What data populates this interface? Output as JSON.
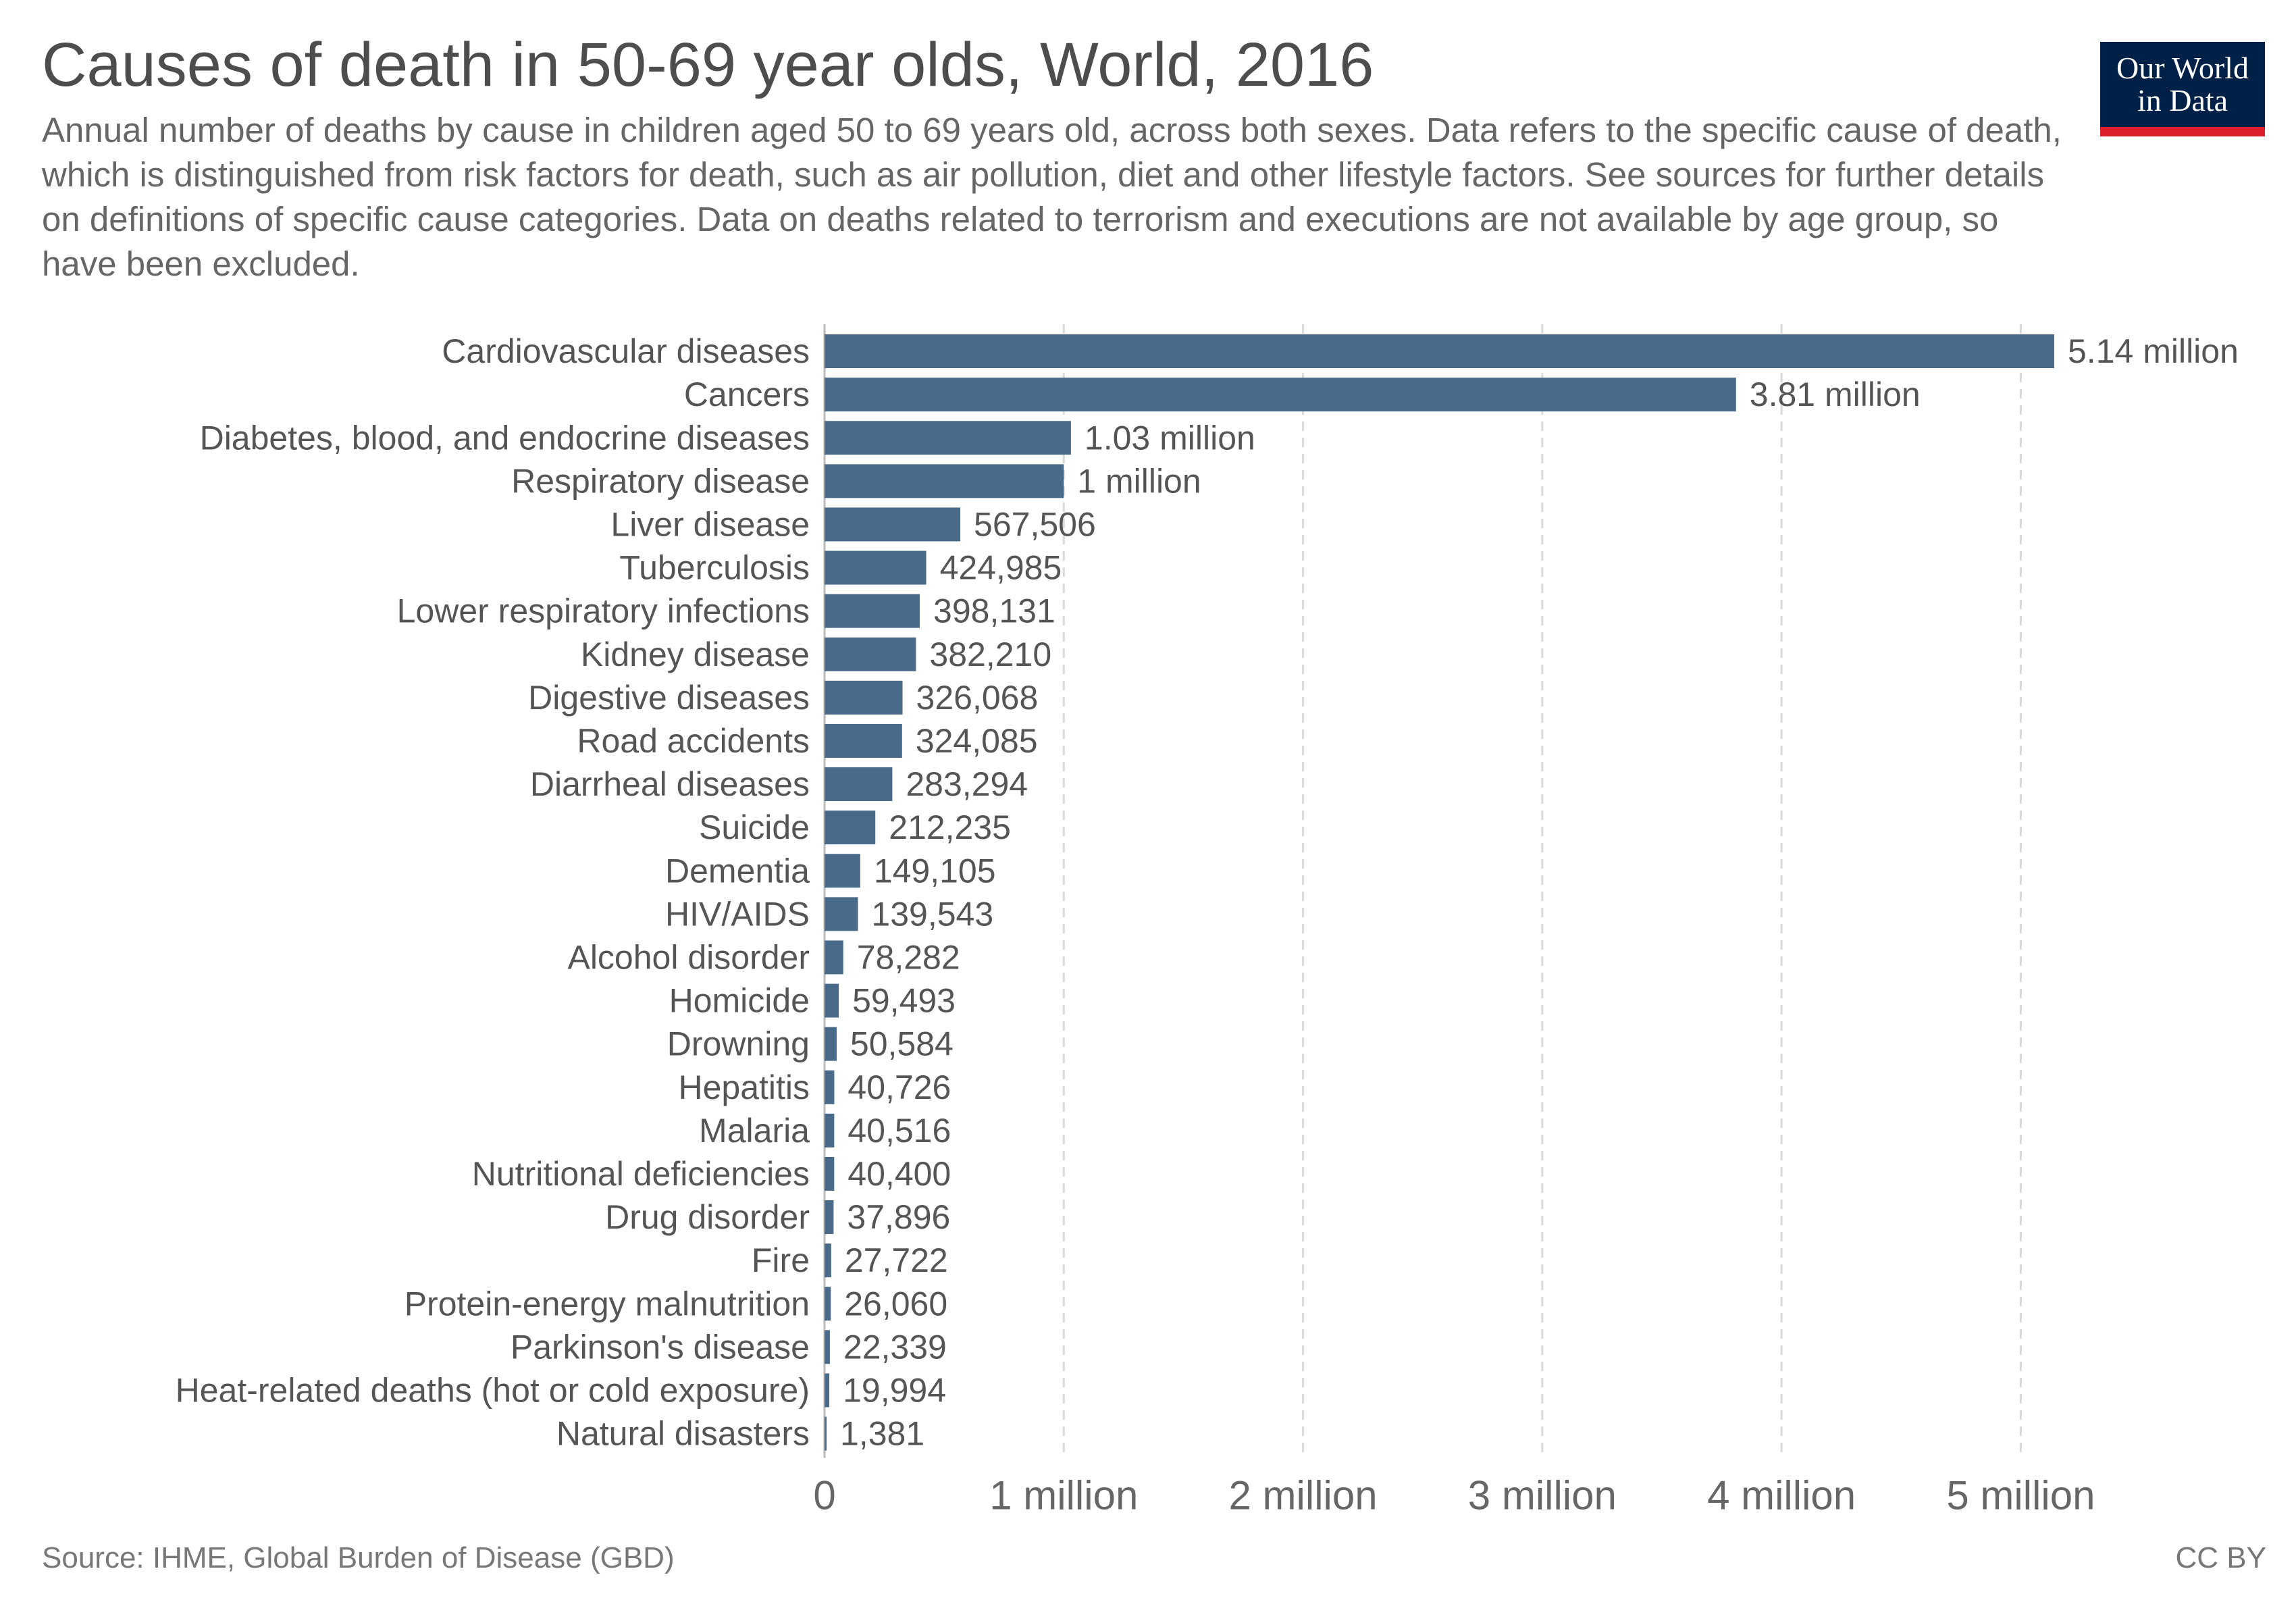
{
  "header": {
    "title": "Causes of death in 50-69 year olds, World, 2016",
    "subtitle": "Annual number of deaths by cause in children aged 50 to 69 years old, across both sexes. Data refers to the specific cause of death, which is distinguished from risk factors for death, such as air pollution, diet and other lifestyle factors. See sources for further details on definitions of specific cause categories. Data on deaths related to terrorism and executions are not available by age group, so have been excluded.",
    "logo_line1": "Our World",
    "logo_line2": "in Data"
  },
  "footer": {
    "source": "Source: IHME, Global Burden of Disease (GBD)",
    "license": "CC BY"
  },
  "colors": {
    "bar": "#4a6a8a",
    "logo_background": "#002147",
    "logo_accent": "#dc1e2c",
    "gridline": "#d9d9d9"
  },
  "chart_data": {
    "type": "bar",
    "orientation": "horizontal",
    "title": "Causes of death in 50-69 year olds, World, 2016",
    "xlabel": "",
    "ylabel": "",
    "xlim": [
      0,
      5140000
    ],
    "grid": true,
    "legend": "none",
    "x_ticks": [
      0,
      1000000,
      2000000,
      3000000,
      4000000,
      5000000
    ],
    "x_tick_labels": [
      "0",
      "1 million",
      "2 million",
      "3 million",
      "4 million",
      "5 million"
    ],
    "categories": [
      "Cardiovascular diseases",
      "Cancers",
      "Diabetes, blood, and endocrine diseases",
      "Respiratory disease",
      "Liver disease",
      "Tuberculosis",
      "Lower respiratory infections",
      "Kidney disease",
      "Digestive diseases",
      "Road accidents",
      "Diarrheal diseases",
      "Suicide",
      "Dementia",
      "HIV/AIDS",
      "Alcohol disorder",
      "Homicide",
      "Drowning",
      "Hepatitis",
      "Malaria",
      "Nutritional deficiencies",
      "Drug disorder",
      "Fire",
      "Protein-energy malnutrition",
      "Parkinson's disease",
      "Heat-related deaths (hot or cold exposure)",
      "Natural disasters"
    ],
    "values": [
      5140000,
      3810000,
      1030000,
      1000000,
      567506,
      424985,
      398131,
      382210,
      326068,
      324085,
      283294,
      212235,
      149105,
      139543,
      78282,
      59493,
      50584,
      40726,
      40516,
      40400,
      37896,
      27722,
      26060,
      22339,
      19994,
      1381
    ],
    "value_labels": [
      "5.14 million",
      "3.81 million",
      "1.03 million",
      "1 million",
      "567,506",
      "424,985",
      "398,131",
      "382,210",
      "326,068",
      "324,085",
      "283,294",
      "212,235",
      "149,105",
      "139,543",
      "78,282",
      "59,493",
      "50,584",
      "40,726",
      "40,516",
      "40,400",
      "37,896",
      "27,722",
      "26,060",
      "22,339",
      "19,994",
      "1,381"
    ]
  }
}
